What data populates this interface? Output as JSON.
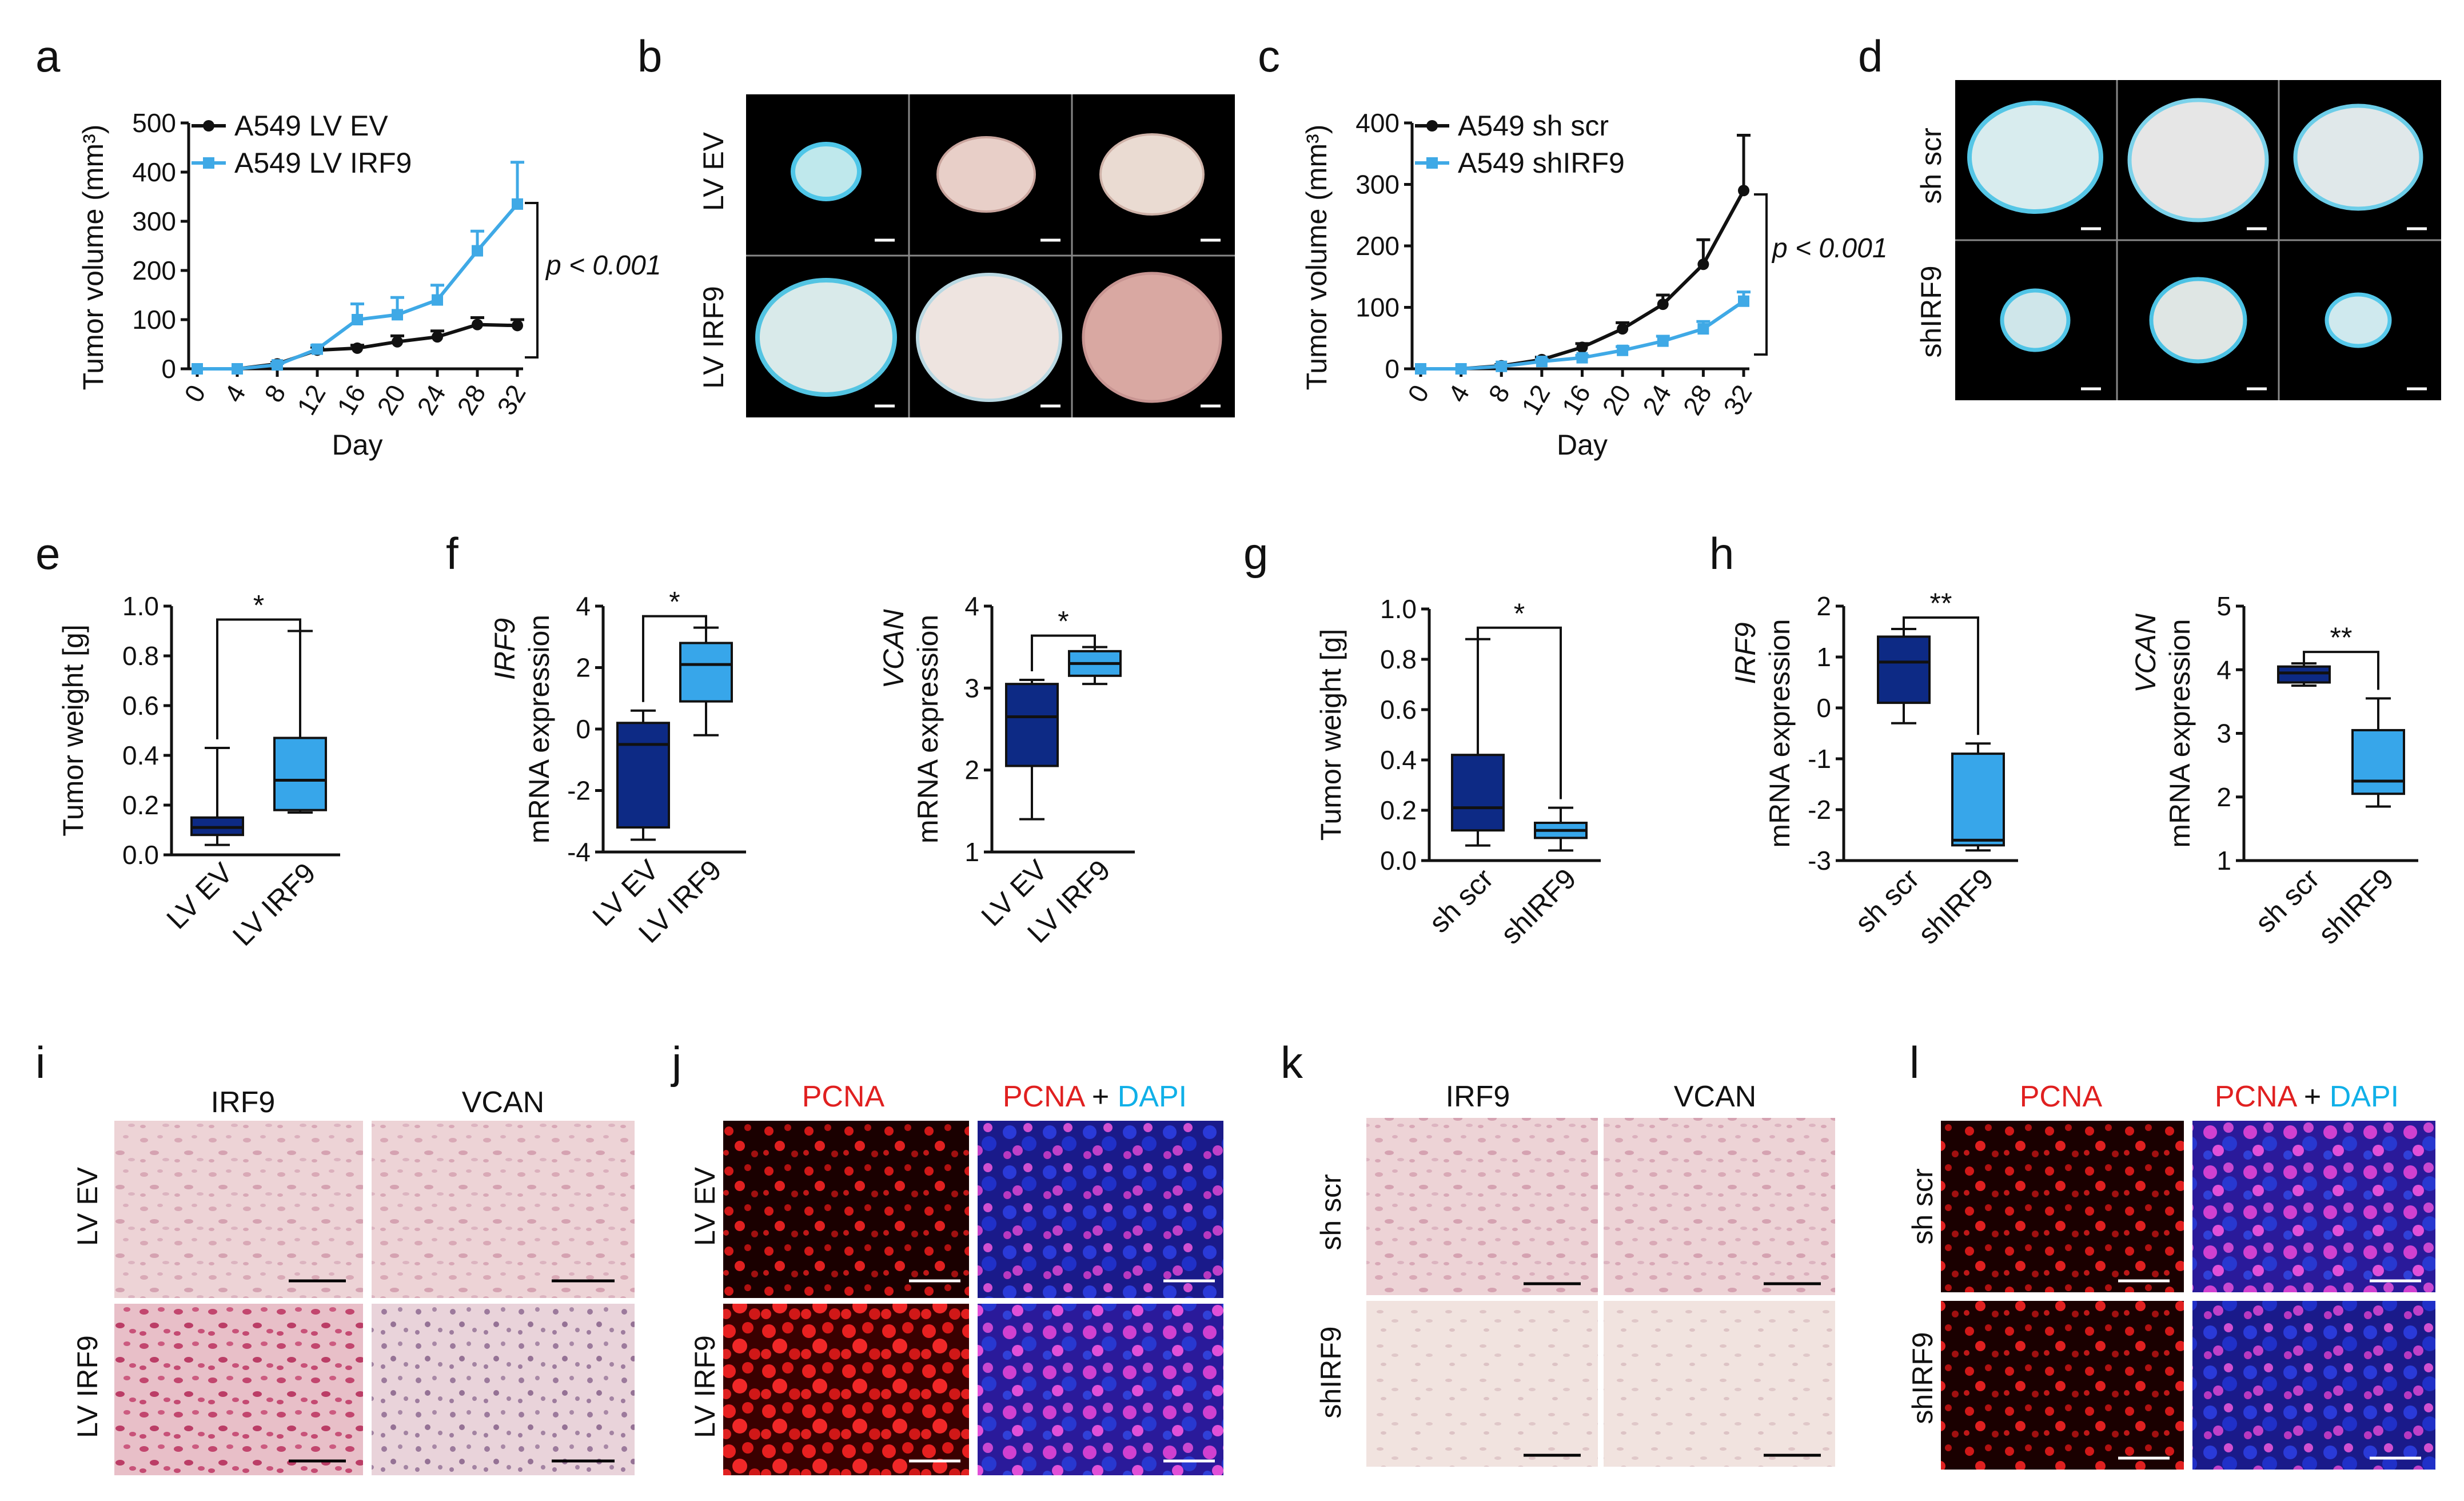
{
  "panels": {
    "a": "a",
    "b": "b",
    "c": "c",
    "d": "d",
    "e": "e",
    "f": "f",
    "g": "g",
    "h": "h",
    "i": "i",
    "j": "j",
    "k": "k",
    "l": "l"
  },
  "colors": {
    "black_series": "#111111",
    "light_blue": "#3fa9e6",
    "dark_navy": "#0d2a85",
    "box_light": "#37a6ea",
    "ihc_pink": "#e9c4cc",
    "ihc_pink_strong": "#dc8fa6",
    "ihc_pale": "#f0dedd",
    "if_red": "#e02020",
    "if_blue": "#2233cc",
    "photo_bg": "#000000"
  },
  "chart_data": [
    {
      "id": "a",
      "type": "line",
      "x": [
        0,
        4,
        8,
        12,
        16,
        20,
        24,
        28,
        32
      ],
      "series": [
        {
          "name": "A549 LV EV",
          "values": [
            0,
            0,
            10,
            38,
            42,
            55,
            65,
            90,
            88
          ],
          "errors": [
            0,
            0,
            3,
            6,
            6,
            12,
            12,
            14,
            12
          ]
        },
        {
          "name": "A549 LV IRF9",
          "values": [
            0,
            0,
            8,
            40,
            100,
            110,
            140,
            240,
            335
          ],
          "errors": [
            0,
            0,
            3,
            8,
            32,
            35,
            30,
            40,
            85
          ]
        }
      ],
      "xlabel": "Day",
      "ylabel": "Tumor volume (mm³)",
      "ylim": [
        0,
        500
      ],
      "yticks": [
        0,
        100,
        200,
        300,
        400,
        500
      ],
      "annotation": "p < 0.001",
      "legend": "top-left",
      "grid": false
    },
    {
      "id": "c",
      "type": "line",
      "x": [
        0,
        4,
        8,
        12,
        16,
        20,
        24,
        28,
        32
      ],
      "series": [
        {
          "name": "A549 sh scr",
          "values": [
            0,
            0,
            5,
            15,
            35,
            65,
            105,
            170,
            290
          ],
          "errors": [
            0,
            0,
            2,
            4,
            6,
            10,
            15,
            40,
            90
          ]
        },
        {
          "name": "A549 shIRF9",
          "values": [
            0,
            0,
            4,
            12,
            18,
            30,
            45,
            65,
            110
          ],
          "errors": [
            0,
            0,
            2,
            3,
            4,
            6,
            8,
            12,
            15
          ]
        }
      ],
      "xlabel": "Day",
      "ylabel": "Tumor volume (mm³)",
      "ylim": [
        0,
        400
      ],
      "yticks": [
        0,
        100,
        200,
        300,
        400
      ],
      "annotation": "p < 0.001",
      "legend": "top-left",
      "grid": false
    },
    {
      "id": "e",
      "type": "box",
      "categories": [
        "LV EV",
        "LV IRF9"
      ],
      "boxes": [
        {
          "min": 0.04,
          "q1": 0.08,
          "median": 0.11,
          "q3": 0.15,
          "max": 0.43
        },
        {
          "min": 0.17,
          "q1": 0.18,
          "median": 0.3,
          "q3": 0.47,
          "max": 0.9
        }
      ],
      "ylabel": "Tumor weight [g]",
      "ylim": [
        0,
        1.0
      ],
      "yticks": [
        0.0,
        0.2,
        0.4,
        0.6,
        0.8,
        1.0
      ],
      "significance": "*"
    },
    {
      "id": "f1",
      "type": "box",
      "categories": [
        "LV EV",
        "LV IRF9"
      ],
      "boxes": [
        {
          "min": -3.6,
          "q1": -3.2,
          "median": -0.5,
          "q3": 0.2,
          "max": 0.6
        },
        {
          "min": -0.2,
          "q1": 0.9,
          "median": 2.1,
          "q3": 2.8,
          "max": 3.3
        }
      ],
      "ylabel_gene": "IRF9",
      "ylabel": "mRNA expression",
      "ylim": [
        -4,
        4
      ],
      "yticks": [
        -4,
        -2,
        0,
        2,
        4
      ],
      "significance": "*"
    },
    {
      "id": "f2",
      "type": "box",
      "categories": [
        "LV EV",
        "LV IRF9"
      ],
      "boxes": [
        {
          "min": 1.4,
          "q1": 2.05,
          "median": 2.65,
          "q3": 3.05,
          "max": 3.1
        },
        {
          "min": 3.05,
          "q1": 3.15,
          "median": 3.3,
          "q3": 3.45,
          "max": 3.5
        }
      ],
      "ylabel_gene": "VCAN",
      "ylabel": "mRNA expression",
      "ylim": [
        1,
        4
      ],
      "yticks": [
        1,
        2,
        3,
        4
      ],
      "significance": "*"
    },
    {
      "id": "g",
      "type": "box",
      "categories": [
        "sh scr",
        "shIRF9"
      ],
      "boxes": [
        {
          "min": 0.06,
          "q1": 0.12,
          "median": 0.21,
          "q3": 0.42,
          "max": 0.88
        },
        {
          "min": 0.04,
          "q1": 0.09,
          "median": 0.12,
          "q3": 0.15,
          "max": 0.21
        }
      ],
      "ylabel": "Tumor weight [g]",
      "ylim": [
        0,
        1.0
      ],
      "yticks": [
        0.0,
        0.2,
        0.4,
        0.6,
        0.8,
        1.0
      ],
      "significance": "*"
    },
    {
      "id": "h1",
      "type": "box",
      "categories": [
        "sh scr",
        "shIRF9"
      ],
      "boxes": [
        {
          "min": -0.3,
          "q1": 0.1,
          "median": 0.9,
          "q3": 1.4,
          "max": 1.55
        },
        {
          "min": -2.8,
          "q1": -2.7,
          "median": -2.6,
          "q3": -0.9,
          "max": -0.7
        }
      ],
      "ylabel_gene": "IRF9",
      "ylabel": "mRNA expression",
      "ylim": [
        -3,
        2
      ],
      "yticks": [
        -3,
        -2,
        -1,
        0,
        1,
        2
      ],
      "significance": "**"
    },
    {
      "id": "h2",
      "type": "box",
      "categories": [
        "sh scr",
        "shIRF9"
      ],
      "boxes": [
        {
          "min": 3.75,
          "q1": 3.8,
          "median": 3.95,
          "q3": 4.05,
          "max": 4.1
        },
        {
          "min": 1.85,
          "q1": 2.05,
          "median": 2.25,
          "q3": 3.05,
          "max": 3.55
        }
      ],
      "ylabel_gene": "VCAN",
      "ylabel": "mRNA expression",
      "ylim": [
        1,
        5
      ],
      "yticks": [
        1,
        2,
        3,
        4,
        5
      ],
      "significance": "**"
    }
  ],
  "photos": {
    "b": {
      "rows": [
        "LV EV",
        "LV IRF9"
      ]
    },
    "d": {
      "rows": [
        "sh scr",
        "shIRF9"
      ]
    }
  },
  "ihc": {
    "i": {
      "cols": [
        "IRF9",
        "VCAN"
      ],
      "rows": [
        "LV EV",
        "LV IRF9"
      ]
    },
    "k": {
      "cols": [
        "IRF9",
        "VCAN"
      ],
      "rows": [
        "sh scr",
        "shIRF9"
      ]
    }
  },
  "if_panels": {
    "j": {
      "col1": "PCNA",
      "col2_a": "PCNA",
      "col2_plus": " + ",
      "col2_b": "DAPI",
      "rows": [
        "LV EV",
        "LV IRF9"
      ]
    },
    "l": {
      "col1": "PCNA",
      "col2_a": "PCNA",
      "col2_plus": " + ",
      "col2_b": "DAPI",
      "rows": [
        "sh scr",
        "shIRF9"
      ]
    }
  }
}
